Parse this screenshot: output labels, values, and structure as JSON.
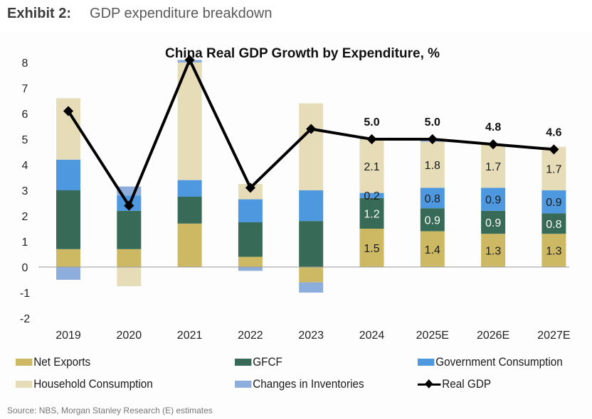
{
  "header": {
    "exhibit": "Exhibit 2:",
    "subtitle": "GDP expenditure breakdown"
  },
  "source": "Source: NBS, Morgan Stanley Research (E) estimates",
  "colors": {
    "net_exports": "#cdb964",
    "gfcf": "#376a57",
    "government_consumption": "#4d98df",
    "household_consumption": "#e6dcb8",
    "changes_in_inventories": "#8daedd",
    "real_gdp": "#000000",
    "axis": "#9a9a9a"
  },
  "chart_data": {
    "type": "bar",
    "stacked": true,
    "title": "China Real GDP Growth by Expenditure, %",
    "xlabel": "",
    "ylabel": "",
    "ylim": [
      -2,
      8
    ],
    "yticks": [
      8,
      7,
      6,
      5,
      4,
      3,
      2,
      1,
      0,
      -1,
      -2
    ],
    "grid": false,
    "legend_position": "bottom",
    "categories": [
      "2019",
      "2020",
      "2021",
      "2022",
      "2023",
      "2024",
      "2025E",
      "2026E",
      "2027E"
    ],
    "series": [
      {
        "name": "Net Exports",
        "key": "net_exports",
        "values": [
          0.7,
          0.7,
          1.7,
          0.4,
          -0.6,
          1.5,
          1.4,
          1.3,
          1.3
        ]
      },
      {
        "name": "GFCF",
        "key": "gfcf",
        "values": [
          2.3,
          1.5,
          1.05,
          1.35,
          1.8,
          1.2,
          0.9,
          0.9,
          0.8
        ]
      },
      {
        "name": "Government Consumption",
        "key": "government_consumption",
        "values": [
          1.2,
          0.6,
          0.65,
          0.9,
          1.2,
          0.2,
          0.8,
          0.9,
          0.9
        ]
      },
      {
        "name": "Household Consumption",
        "key": "household_consumption",
        "values": [
          2.4,
          -0.75,
          4.6,
          0.6,
          3.4,
          2.1,
          1.8,
          1.7,
          1.7
        ]
      },
      {
        "name": "Changes in Inventories",
        "key": "changes_in_inventories",
        "values": [
          -0.5,
          0.35,
          0.1,
          -0.15,
          -0.4,
          0.05,
          0.05,
          0.0,
          0.0
        ]
      }
    ],
    "line": {
      "name": "Real GDP",
      "key": "real_gdp",
      "values": [
        6.1,
        2.4,
        8.1,
        3.1,
        5.4,
        5.0,
        5.0,
        4.8,
        4.6
      ]
    },
    "segment_labels": {
      "2024": {
        "net_exports": "1.5",
        "gfcf": "1.2",
        "government_consumption": "0.2",
        "household_consumption": "2.1"
      },
      "2025E": {
        "net_exports": "1.4",
        "gfcf": "0.9",
        "government_consumption": "0.8",
        "household_consumption": "1.8"
      },
      "2026E": {
        "net_exports": "1.3",
        "gfcf": "0.9",
        "government_consumption": "0.9",
        "household_consumption": "1.7"
      },
      "2027E": {
        "net_exports": "1.3",
        "gfcf": "0.8",
        "government_consumption": "0.9",
        "household_consumption": "1.7"
      }
    },
    "line_labels": {
      "2024": "5.0",
      "2025E": "5.0",
      "2026E": "4.8",
      "2027E": "4.6"
    }
  },
  "legend": {
    "items": [
      {
        "label": "Net Exports",
        "key": "net_exports",
        "kind": "bar"
      },
      {
        "label": "GFCF",
        "key": "gfcf",
        "kind": "bar"
      },
      {
        "label": "Government Consumption",
        "key": "government_consumption",
        "kind": "bar"
      },
      {
        "label": "Household Consumption",
        "key": "household_consumption",
        "kind": "bar"
      },
      {
        "label": "Changes in Inventories",
        "key": "changes_in_inventories",
        "kind": "bar"
      },
      {
        "label": "Real GDP",
        "key": "real_gdp",
        "kind": "line"
      }
    ]
  }
}
